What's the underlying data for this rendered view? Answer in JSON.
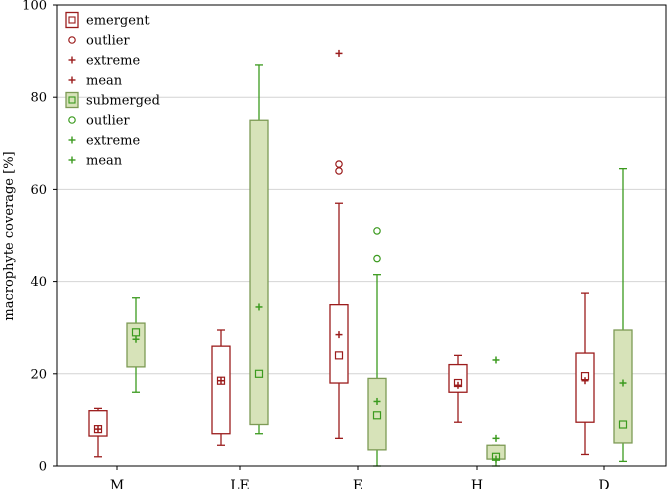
{
  "chart_data": {
    "type": "boxplot",
    "ylabel": "macrophyte coverage [%]",
    "xlabel": "",
    "ylim": [
      0,
      100
    ],
    "yticks": [
      0,
      20,
      40,
      60,
      80,
      100
    ],
    "grid": "horizontal",
    "legend_position": "top-left",
    "categories": [
      "M",
      "LE",
      "E",
      "H",
      "D"
    ],
    "colors": {
      "emergent_stroke": "#9b1c1c",
      "emergent_fill": "#ffffff",
      "submerged_stroke": "#3b9a1e",
      "submerged_fill": "#d7e3b9",
      "submerged_border": "#7d9a55",
      "grid": "#d4d4d4"
    },
    "legend": [
      {
        "label": "emergent",
        "symbol": "box",
        "series": "emergent"
      },
      {
        "label": "outlier",
        "symbol": "circle",
        "series": "emergent"
      },
      {
        "label": "extreme",
        "symbol": "plus",
        "series": "emergent"
      },
      {
        "label": "mean",
        "symbol": "plus",
        "series": "emergent"
      },
      {
        "label": "submerged",
        "symbol": "box",
        "series": "submerged"
      },
      {
        "label": "outlier",
        "symbol": "circle",
        "series": "submerged"
      },
      {
        "label": "extreme",
        "symbol": "plus",
        "series": "submerged"
      },
      {
        "label": "mean",
        "symbol": "plus",
        "series": "submerged"
      }
    ],
    "series": [
      {
        "name": "emergent",
        "boxes": [
          {
            "category": "M",
            "min": 2,
            "q1": 6.5,
            "median": 8,
            "q3": 12,
            "max": 12.5,
            "mean": 8,
            "outliers": [],
            "extremes": []
          },
          {
            "category": "LE",
            "min": 4.5,
            "q1": 7,
            "median": 18.5,
            "q3": 26,
            "max": 29.5,
            "mean": 18.5,
            "outliers": [],
            "extremes": []
          },
          {
            "category": "E",
            "min": 6,
            "q1": 18,
            "median": 24,
            "q3": 35,
            "max": 57,
            "mean": 28.5,
            "outliers": [
              64,
              65.5
            ],
            "extremes": [
              89.5
            ]
          },
          {
            "category": "H",
            "min": 9.5,
            "q1": 16,
            "median": 18,
            "q3": 22,
            "max": 24,
            "mean": 17.5,
            "outliers": [],
            "extremes": []
          },
          {
            "category": "D",
            "min": 2.5,
            "q1": 9.5,
            "median": 19.5,
            "q3": 24.5,
            "max": 37.5,
            "mean": 18.5,
            "outliers": [],
            "extremes": []
          }
        ]
      },
      {
        "name": "submerged",
        "boxes": [
          {
            "category": "M",
            "min": 16,
            "q1": 21.5,
            "median": 29,
            "q3": 31,
            "max": 36.5,
            "mean": 27.5,
            "outliers": [],
            "extremes": []
          },
          {
            "category": "LE",
            "min": 7,
            "q1": 9,
            "median": 20,
            "q3": 75,
            "max": 87,
            "mean": 34.5,
            "outliers": [],
            "extremes": []
          },
          {
            "category": "E",
            "min": 0,
            "q1": 3.5,
            "median": 11,
            "q3": 19,
            "max": 41.5,
            "mean": 14,
            "outliers": [
              45,
              51
            ],
            "extremes": []
          },
          {
            "category": "H",
            "min": 0,
            "q1": 1.5,
            "median": 2,
            "q3": 4.5,
            "max": 4.5,
            "mean": 1.5,
            "outliers": [],
            "extremes": [
              6,
              23
            ]
          },
          {
            "category": "D",
            "min": 1,
            "q1": 5,
            "median": 9,
            "q3": 29.5,
            "max": 64.5,
            "mean": 18,
            "outliers": [],
            "extremes": []
          }
        ]
      }
    ]
  }
}
